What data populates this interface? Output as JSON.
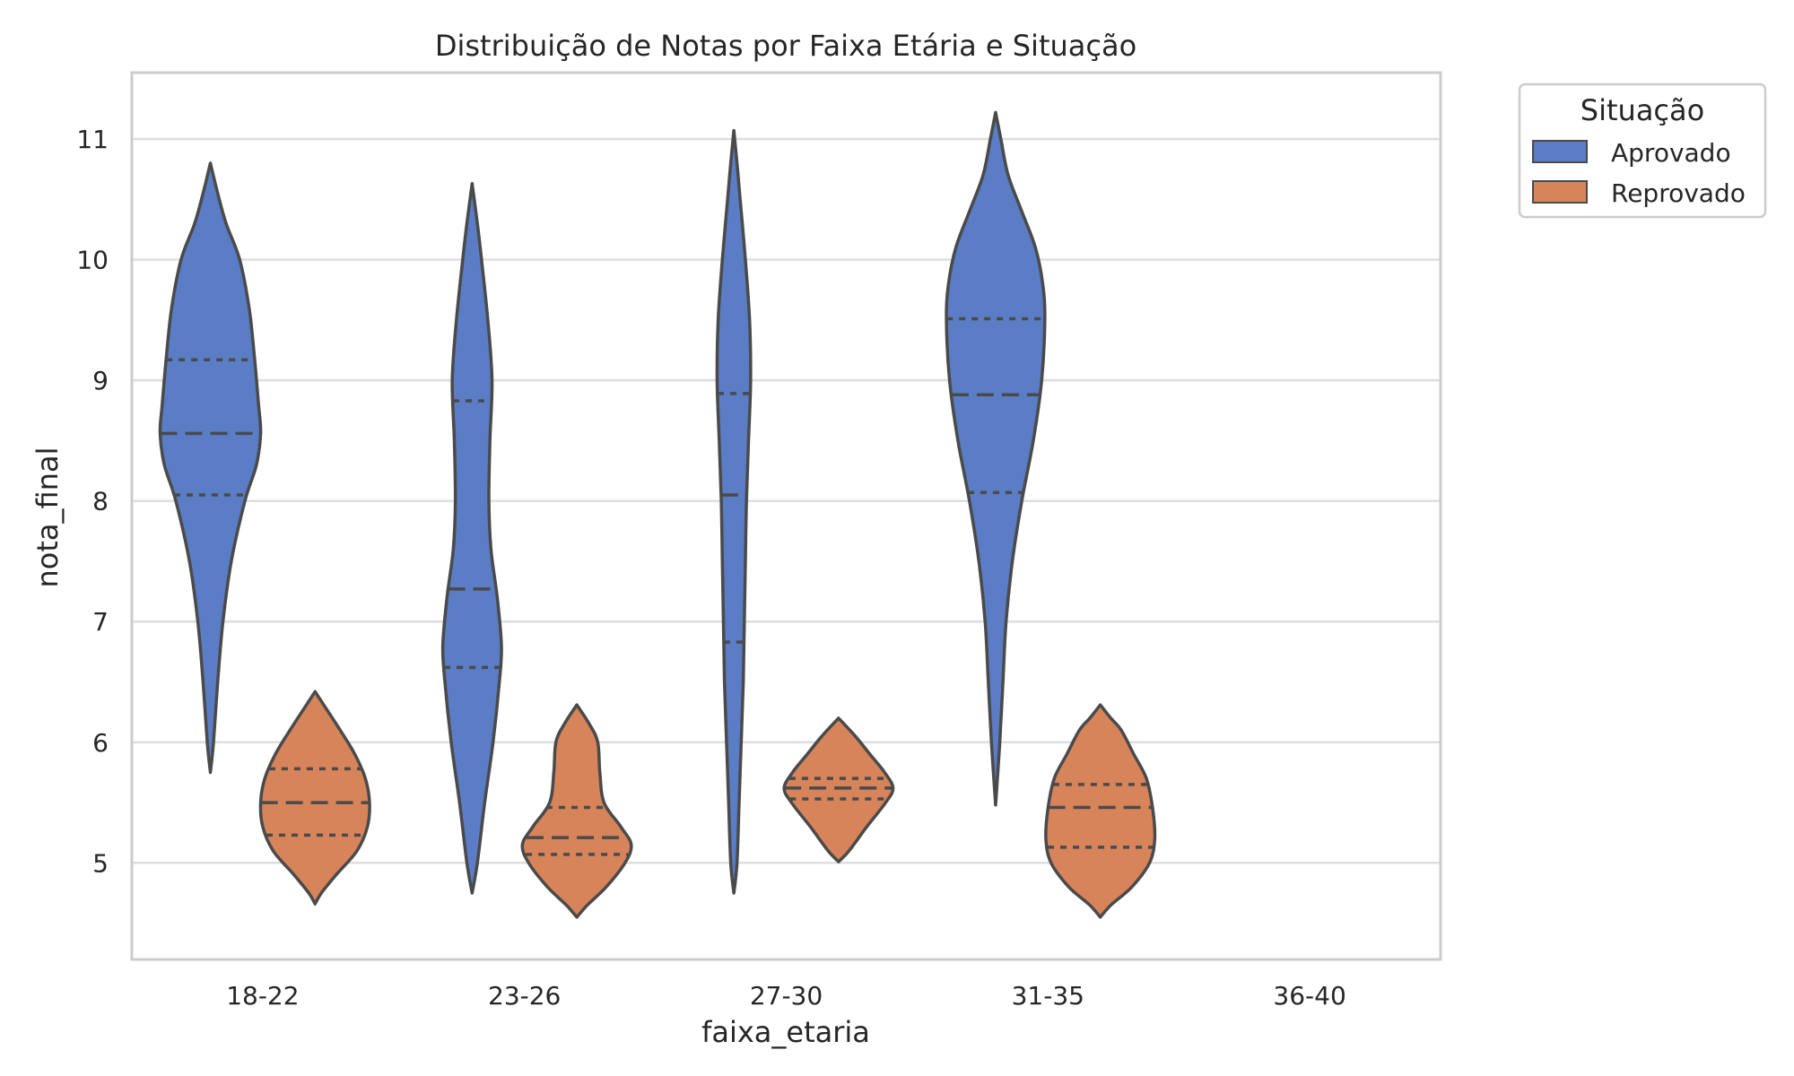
{
  "chart_data": {
    "type": "violin",
    "title": "Distribuição de Notas por Faixa Etária e Situação",
    "xlabel": "faixa_etaria",
    "ylabel": "nota_final",
    "categories": [
      "18-22",
      "23-26",
      "27-30",
      "31-35",
      "36-40"
    ],
    "ylim": [
      4.2,
      11.55
    ],
    "yticks": [
      5,
      6,
      7,
      8,
      9,
      10,
      11
    ],
    "grid": "horizontal",
    "legend": {
      "title": "Situação",
      "placement": "outside-top-right"
    },
    "inner": "quartile",
    "series": [
      {
        "name": "Aprovado",
        "color": "#5a7dc6",
        "violins": [
          {
            "category": "18-22",
            "min": 5.75,
            "max": 10.8,
            "q1": 8.05,
            "median": 8.56,
            "q3": 9.17,
            "profile": [
              [
                5.75,
                0.0
              ],
              [
                6.0,
                0.03
              ],
              [
                6.5,
                0.07
              ],
              [
                7.0,
                0.12
              ],
              [
                7.5,
                0.2
              ],
              [
                8.0,
                0.33
              ],
              [
                8.3,
                0.44
              ],
              [
                8.56,
                0.48
              ],
              [
                8.8,
                0.46
              ],
              [
                9.2,
                0.42
              ],
              [
                9.6,
                0.37
              ],
              [
                10.0,
                0.28
              ],
              [
                10.3,
                0.15
              ],
              [
                10.55,
                0.07
              ],
              [
                10.8,
                0.0
              ]
            ]
          },
          {
            "category": "23-26",
            "min": 4.75,
            "max": 10.63,
            "q1": 6.62,
            "median": 7.27,
            "q3": 8.83,
            "profile": [
              [
                4.75,
                0.0
              ],
              [
                5.0,
                0.05
              ],
              [
                5.5,
                0.12
              ],
              [
                6.0,
                0.2
              ],
              [
                6.5,
                0.26
              ],
              [
                6.8,
                0.28
              ],
              [
                7.2,
                0.24
              ],
              [
                7.6,
                0.18
              ],
              [
                8.0,
                0.16
              ],
              [
                8.5,
                0.17
              ],
              [
                9.0,
                0.19
              ],
              [
                9.5,
                0.15
              ],
              [
                10.0,
                0.09
              ],
              [
                10.3,
                0.05
              ],
              [
                10.63,
                0.0
              ]
            ]
          },
          {
            "category": "27-30",
            "min": 4.75,
            "max": 11.07,
            "q1": 6.83,
            "median": 8.05,
            "q3": 8.89,
            "profile": [
              [
                4.75,
                0.0
              ],
              [
                5.0,
                0.03
              ],
              [
                5.5,
                0.05
              ],
              [
                6.0,
                0.07
              ],
              [
                6.5,
                0.09
              ],
              [
                7.0,
                0.1
              ],
              [
                7.5,
                0.11
              ],
              [
                8.0,
                0.12
              ],
              [
                8.5,
                0.14
              ],
              [
                9.0,
                0.16
              ],
              [
                9.5,
                0.15
              ],
              [
                10.0,
                0.11
              ],
              [
                10.5,
                0.06
              ],
              [
                10.8,
                0.03
              ],
              [
                11.07,
                0.0
              ]
            ]
          },
          {
            "category": "31-35",
            "min": 5.48,
            "max": 11.22,
            "q1": 8.07,
            "median": 8.88,
            "q3": 9.51,
            "profile": [
              [
                5.48,
                0.0
              ],
              [
                6.0,
                0.04
              ],
              [
                6.5,
                0.07
              ],
              [
                7.0,
                0.1
              ],
              [
                7.5,
                0.16
              ],
              [
                8.0,
                0.25
              ],
              [
                8.5,
                0.36
              ],
              [
                9.0,
                0.44
              ],
              [
                9.5,
                0.47
              ],
              [
                9.8,
                0.45
              ],
              [
                10.1,
                0.38
              ],
              [
                10.4,
                0.25
              ],
              [
                10.7,
                0.12
              ],
              [
                11.0,
                0.05
              ],
              [
                11.22,
                0.0
              ]
            ]
          }
        ]
      },
      {
        "name": "Reprovado",
        "color": "#d8845a",
        "violins": [
          {
            "category": "18-22",
            "min": 4.66,
            "max": 6.42,
            "q1": 5.23,
            "median": 5.5,
            "q3": 5.78,
            "profile": [
              [
                4.66,
                0.0
              ],
              [
                4.75,
                0.06
              ],
              [
                4.9,
                0.2
              ],
              [
                5.1,
                0.4
              ],
              [
                5.3,
                0.5
              ],
              [
                5.5,
                0.52
              ],
              [
                5.7,
                0.48
              ],
              [
                5.9,
                0.38
              ],
              [
                6.1,
                0.24
              ],
              [
                6.3,
                0.09
              ],
              [
                6.42,
                0.0
              ]
            ]
          },
          {
            "category": "23-26",
            "min": 4.55,
            "max": 6.31,
            "q1": 5.07,
            "median": 5.21,
            "q3": 5.46,
            "profile": [
              [
                4.55,
                0.0
              ],
              [
                4.65,
                0.1
              ],
              [
                4.8,
                0.28
              ],
              [
                5.0,
                0.46
              ],
              [
                5.15,
                0.52
              ],
              [
                5.3,
                0.42
              ],
              [
                5.5,
                0.26
              ],
              [
                5.75,
                0.22
              ],
              [
                6.0,
                0.2
              ],
              [
                6.15,
                0.12
              ],
              [
                6.31,
                0.0
              ]
            ]
          },
          {
            "category": "27-30",
            "min": 5.01,
            "max": 6.2,
            "q1": 5.53,
            "median": 5.62,
            "q3": 5.7,
            "profile": [
              [
                5.01,
                0.0
              ],
              [
                5.1,
                0.1
              ],
              [
                5.3,
                0.27
              ],
              [
                5.5,
                0.45
              ],
              [
                5.62,
                0.52
              ],
              [
                5.75,
                0.44
              ],
              [
                5.9,
                0.3
              ],
              [
                6.05,
                0.16
              ],
              [
                6.2,
                0.0
              ]
            ]
          },
          {
            "category": "31-35",
            "min": 4.55,
            "max": 6.31,
            "q1": 5.13,
            "median": 5.46,
            "q3": 5.65,
            "profile": [
              [
                4.55,
                0.0
              ],
              [
                4.65,
                0.1
              ],
              [
                4.8,
                0.3
              ],
              [
                5.0,
                0.47
              ],
              [
                5.2,
                0.52
              ],
              [
                5.45,
                0.5
              ],
              [
                5.7,
                0.44
              ],
              [
                5.9,
                0.32
              ],
              [
                6.1,
                0.2
              ],
              [
                6.2,
                0.1
              ],
              [
                6.31,
                0.0
              ]
            ]
          }
        ]
      }
    ]
  }
}
